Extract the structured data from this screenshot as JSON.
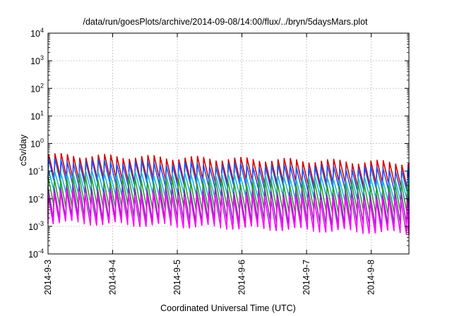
{
  "chart_data": {
    "type": "line",
    "title": "/data/run/goesPlots/archive/2014-09-08/14:00/flux/../bryn/5daysMars.plot",
    "xlabel": "Coordinated Universal Time (UTC)",
    "ylabel": "cSv/day",
    "yscale": "log",
    "ylim": [
      0.0001,
      10000
    ],
    "xlim": [
      "2014-09-03",
      "2014-09-08T14:00"
    ],
    "grid": true,
    "x_ticks": [
      "2014-9-3",
      "2014-9-4",
      "2014-9-5",
      "2014-9-6",
      "2014-9-7",
      "2014-9-8"
    ],
    "y_ticks": [
      {
        "base": "10",
        "exp": "-4",
        "value": 0.0001
      },
      {
        "base": "10",
        "exp": "-3",
        "value": 0.001
      },
      {
        "base": "10",
        "exp": "-2",
        "value": 0.01
      },
      {
        "base": "10",
        "exp": "-1",
        "value": 0.1
      },
      {
        "base": "10",
        "exp": "0",
        "value": 1
      },
      {
        "base": "10",
        "exp": "1",
        "value": 10
      },
      {
        "base": "10",
        "exp": "2",
        "value": 100
      },
      {
        "base": "10",
        "exp": "3",
        "value": 1000
      },
      {
        "base": "10",
        "exp": "4",
        "value": 10000
      }
    ],
    "period_hours": 2.3,
    "series": [
      {
        "color": "#d40000",
        "peak": 0.38,
        "trough": 0.055,
        "peak_end": 0.2,
        "trough_end": 0.03
      },
      {
        "color": "#1a50ff",
        "peak": 0.25,
        "trough": 0.04,
        "peak_end": 0.12,
        "trough_end": 0.02
      },
      {
        "color": "#19b4e6",
        "peak": 0.1,
        "trough": 0.018,
        "peak_end": 0.05,
        "trough_end": 0.009
      },
      {
        "color": "#2aa02a",
        "peak": 0.06,
        "trough": 0.006,
        "peak_end": 0.03,
        "trough_end": 0.003
      },
      {
        "color": "#7733aa",
        "peak": 0.03,
        "trough": 0.0022,
        "peak_end": 0.015,
        "trough_end": 0.0011
      },
      {
        "color": "#ff00ff",
        "peak": 0.018,
        "trough": 0.0015,
        "peak_end": 0.009,
        "trough_end": 0.0006
      }
    ]
  }
}
